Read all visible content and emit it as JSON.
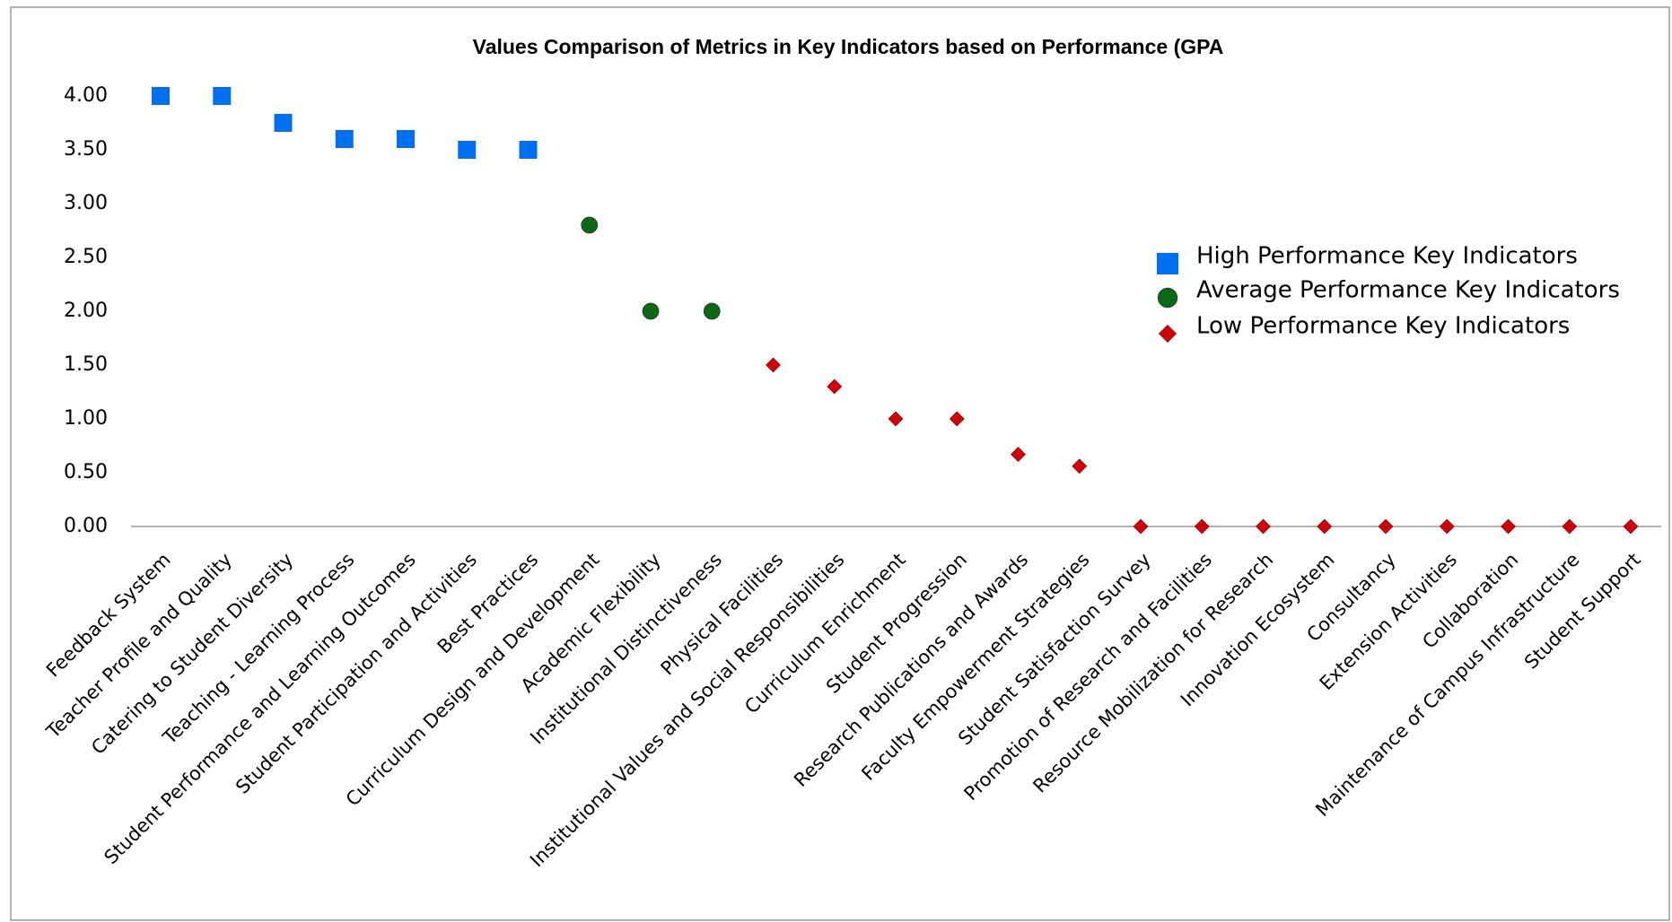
{
  "chart_data": {
    "type": "scatter",
    "title": "Values Comparison of Metrics in Key Indicators based on Performance (GPA",
    "categories": [
      "Feedback System",
      "Teacher Profile and Quality",
      "Catering to Student Diversity",
      "Teaching - Learning Process",
      "Student Performance and Learning Outcomes",
      "Student Participation and Activities",
      "Best Practices",
      "Curriculum Design and Development",
      "Academic Flexibility",
      "Institutional Distinctiveness",
      "Physical Facilities",
      "Institutional Values and Social Responsibilities",
      "Curriculum Enrichment",
      "Student Progression",
      "Research Publications and Awards",
      "Faculty Empowerment Strategies",
      "Student Satisfaction Survey",
      "Promotion of Research and Facilities",
      "Resource Mobilization for Research",
      "Innovation Ecosystem",
      "Consultancy",
      "Extension Activities",
      "Collaboration",
      "Maintenance of Campus Infrastructure",
      "Student Support"
    ],
    "series": [
      {
        "name": "High Performance Key Indicators",
        "color": "#0070f0",
        "marker": "square",
        "values": [
          4,
          4,
          3.75,
          3.6,
          3.6,
          3.5,
          3.5,
          null,
          null,
          null,
          null,
          null,
          null,
          null,
          null,
          null,
          null,
          null,
          null,
          null,
          null,
          null,
          null,
          null,
          null
        ]
      },
      {
        "name": "Average Performance Key Indicators",
        "color": "#0a6a14",
        "marker": "circle",
        "values": [
          null,
          null,
          null,
          null,
          null,
          null,
          null,
          2.8,
          2,
          2,
          null,
          null,
          null,
          null,
          null,
          null,
          null,
          null,
          null,
          null,
          null,
          null,
          null,
          null,
          null
        ]
      },
      {
        "name": "Low Performance Key Indicators",
        "color": "#d0000a",
        "marker": "diamond",
        "values": [
          null,
          null,
          null,
          null,
          null,
          null,
          null,
          null,
          null,
          null,
          1.5,
          1.3,
          1,
          1,
          0.67,
          0.56,
          0,
          0,
          0,
          0,
          0,
          0,
          0,
          0,
          0
        ]
      }
    ],
    "ylim": [
      0,
      4
    ],
    "yticks": [
      {
        "value": 0,
        "label": "0.00"
      },
      {
        "value": 0.5,
        "label": "0.50"
      },
      {
        "value": 1,
        "label": "1.00"
      },
      {
        "value": 1.5,
        "label": "1.50"
      },
      {
        "value": 2,
        "label": "2.00"
      },
      {
        "value": 2.5,
        "label": "2.50"
      },
      {
        "value": 3,
        "label": "3.00"
      },
      {
        "value": 3.5,
        "label": "3.50"
      },
      {
        "value": 4,
        "label": "4.00"
      }
    ],
    "grid": false,
    "legend": "right"
  }
}
